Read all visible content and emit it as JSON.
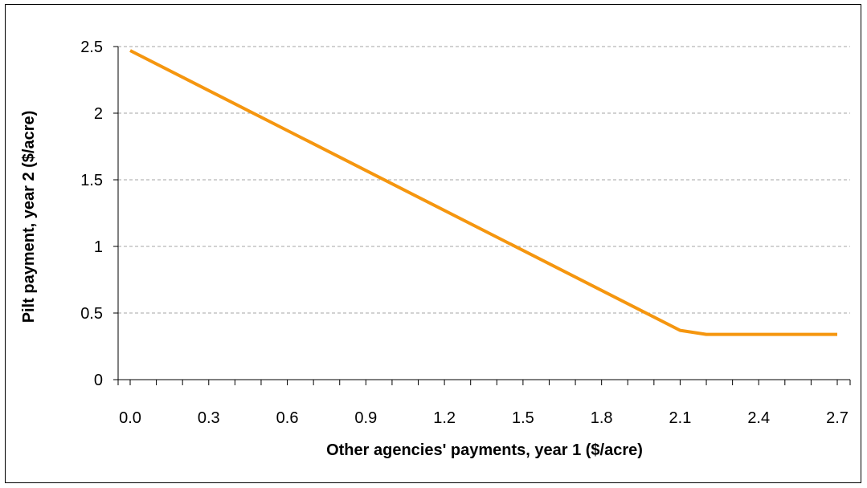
{
  "chart_data": {
    "type": "line",
    "title": "",
    "xlabel": "Other agencies' payments, year 1 ($/acre)",
    "ylabel": "Pilt payment, year 2 ($/acre)",
    "x_tick_labels": [
      "0.0",
      "0.3",
      "0.6",
      "0.9",
      "1.2",
      "1.5",
      "1.8",
      "2.1",
      "2.4",
      "2.7"
    ],
    "y_tick_labels": [
      "0",
      "0.5",
      "1",
      "1.5",
      "2",
      "2.5"
    ],
    "xlim": [
      0,
      2.7
    ],
    "ylim": [
      0,
      2.5
    ],
    "grid": "horizontal dashed",
    "series": [
      {
        "color": "#f5960f",
        "points": [
          {
            "x": 0.0,
            "y": 2.47
          },
          {
            "x": 2.1,
            "y": 0.37
          },
          {
            "x": 2.2,
            "y": 0.34
          },
          {
            "x": 2.7,
            "y": 0.34
          }
        ]
      }
    ]
  }
}
